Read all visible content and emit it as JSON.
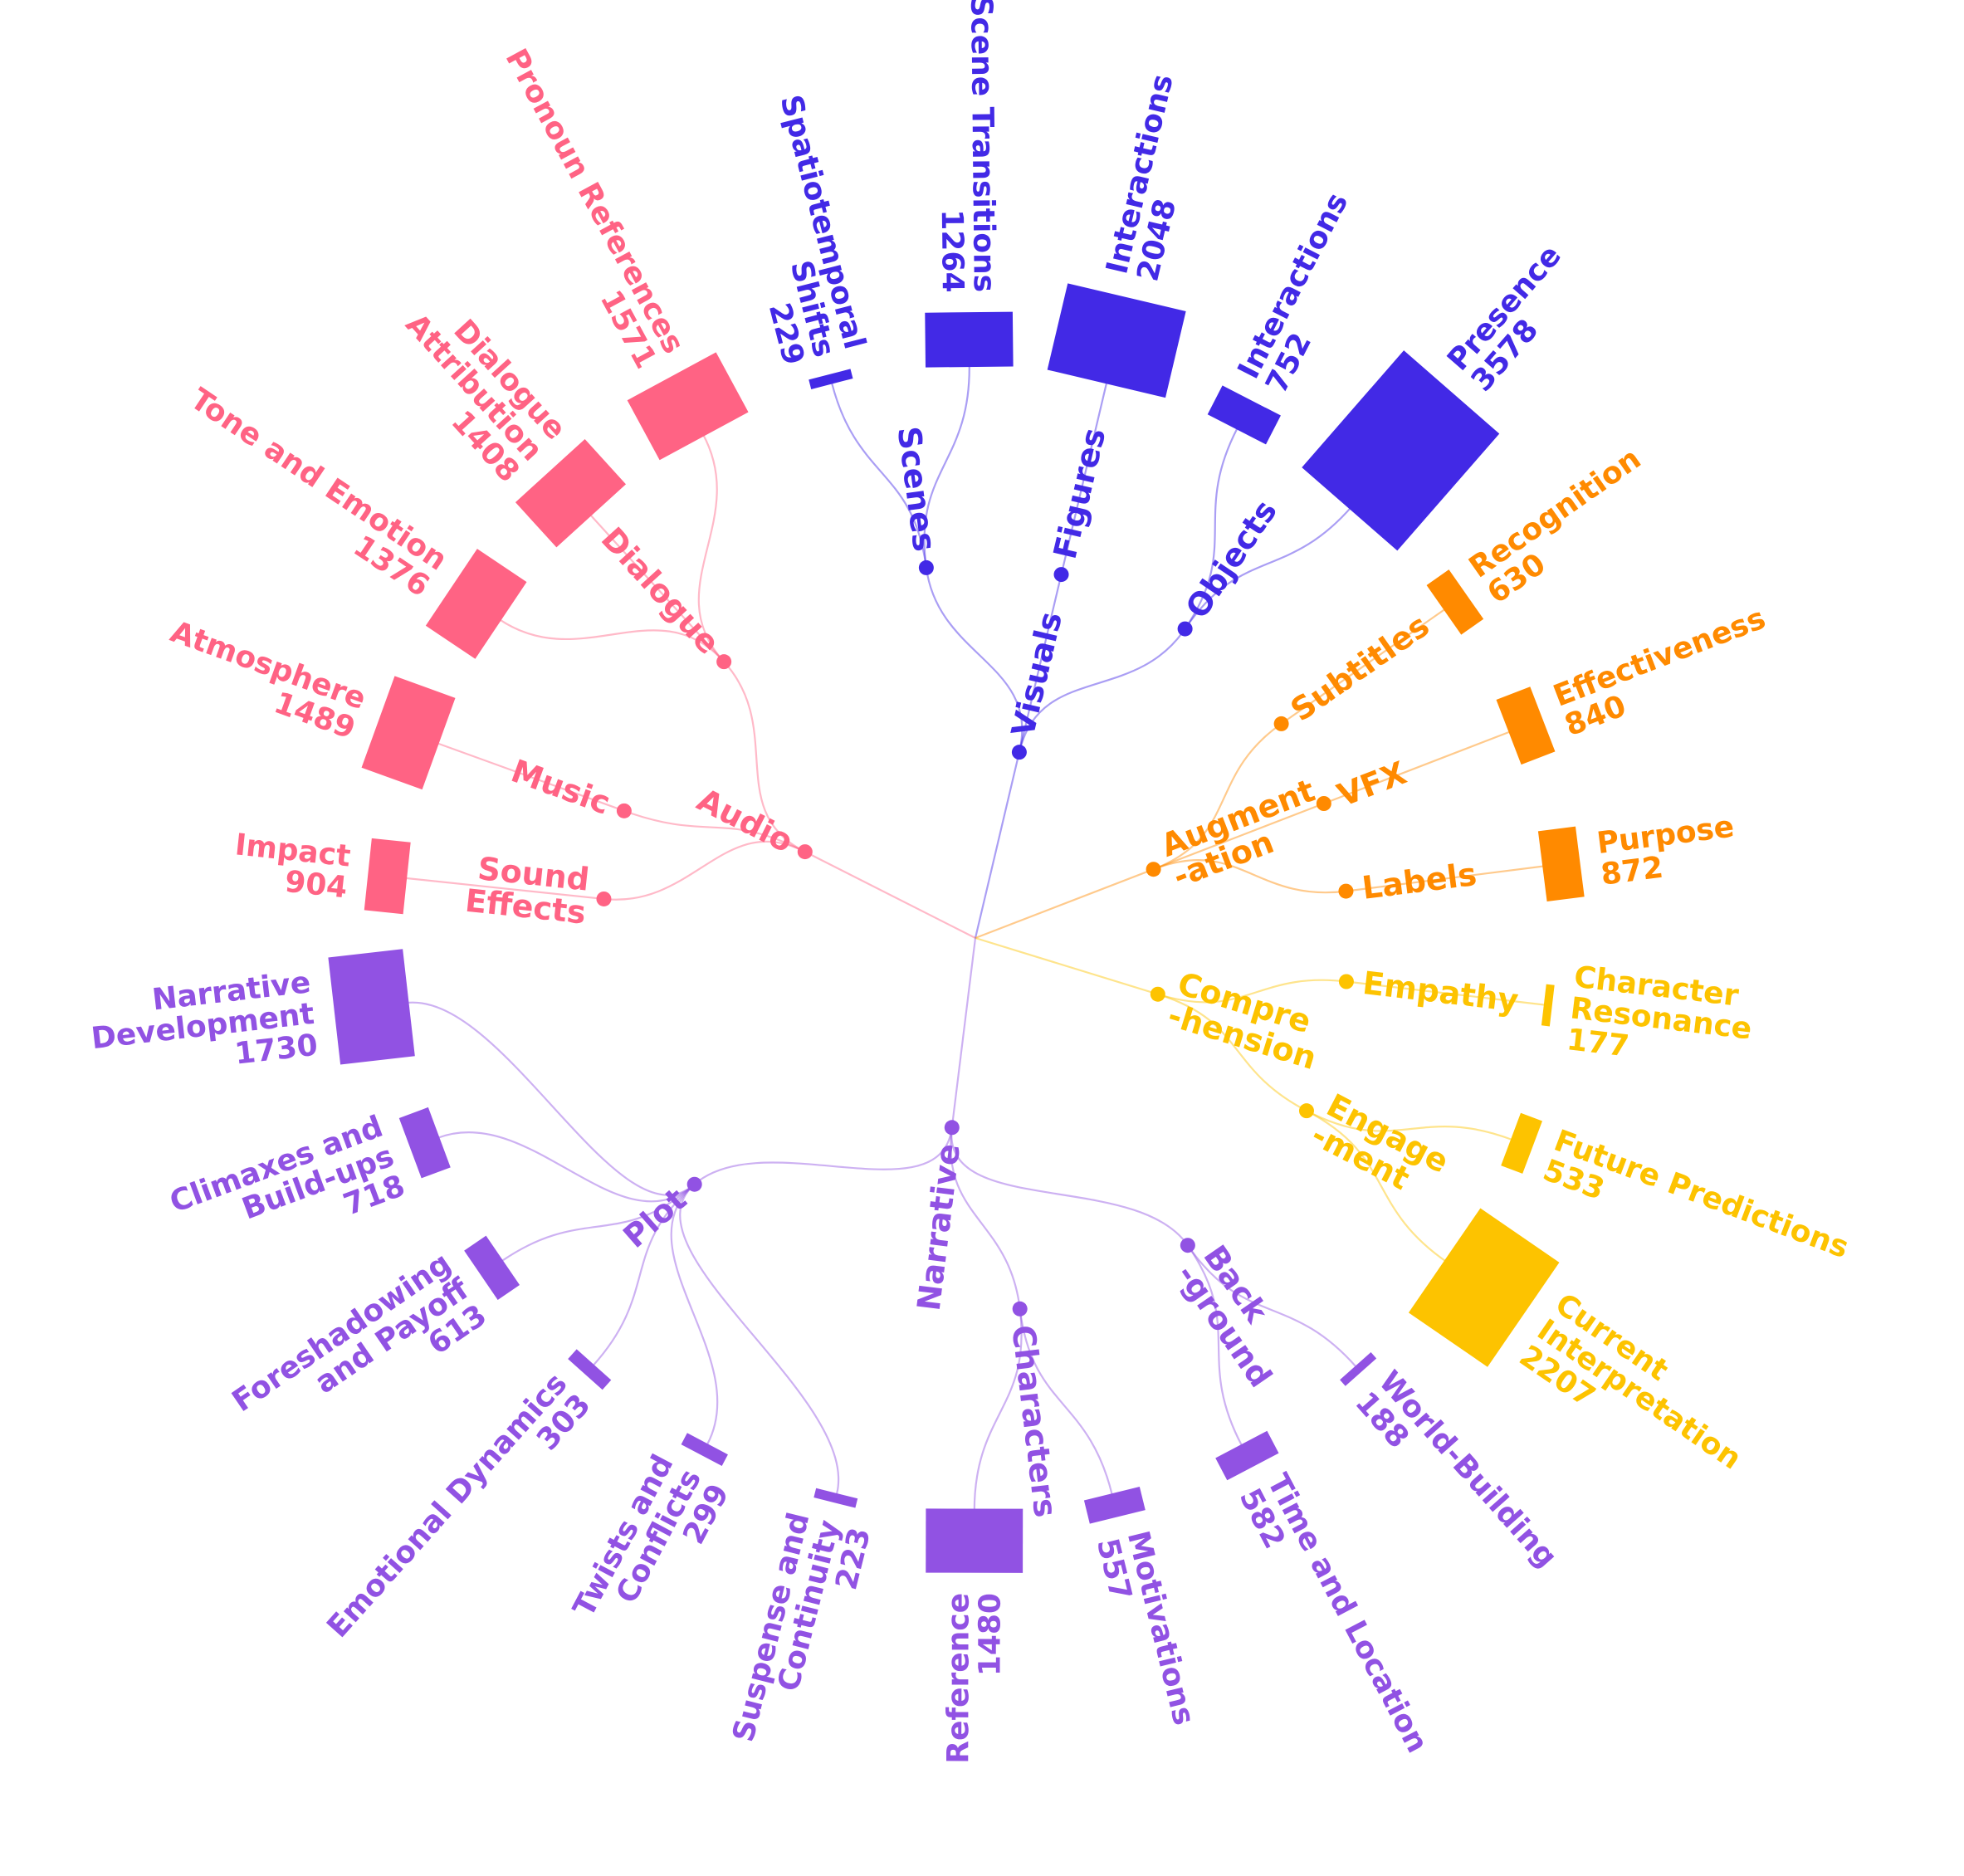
{
  "chart_data": {
    "type": "radial-tree",
    "groups": [
      {
        "name": "Audio",
        "color": "#FF6384",
        "subgroups": [
          {
            "name": "Sound Effects",
            "lines": [
              "Sound",
              "Effects"
            ],
            "leaves": [
              {
                "name": "Impact",
                "value": 904
              }
            ]
          },
          {
            "name": "Music",
            "lines": [
              "Music"
            ],
            "leaves": [
              {
                "name": "Atmosphere",
                "value": 1489
              }
            ]
          },
          {
            "name": "Dialogue",
            "lines": [
              "Dialogue"
            ],
            "leaves": [
              {
                "name": "Tone and Emotion",
                "value": 1376
              },
              {
                "name": "Dialogue Attribution",
                "value": 1408
              },
              {
                "name": "Pronoun References",
                "value": 1571
              }
            ]
          }
        ]
      },
      {
        "name": "Visuals",
        "color": "#4229E6",
        "subgroups": [
          {
            "name": "Scenes",
            "lines": [
              "Scenes"
            ],
            "leaves": [
              {
                "name": "Spatiotemporal Shifts",
                "value": 229
              },
              {
                "name": "Scene Transitions",
                "value": 1264
              }
            ]
          },
          {
            "name": "Figures",
            "lines": [
              "Figures"
            ],
            "leaves": [
              {
                "name": "Interactions",
                "value": 2048
              }
            ]
          },
          {
            "name": "Objects",
            "lines": [
              "Objects"
            ],
            "leaves": [
              {
                "name": "Interactions",
                "value": 752
              },
              {
                "name": "Presence",
                "value": 3578
              }
            ]
          }
        ]
      },
      {
        "name": "Augmentation",
        "lines": [
          "Augment",
          "-ation"
        ],
        "color": "#FF8A00",
        "subgroups": [
          {
            "name": "Subtitles",
            "lines": [
              "Subtitles"
            ],
            "leaves": [
              {
                "name": "Recognition",
                "value": 630
              }
            ]
          },
          {
            "name": "VFX",
            "lines": [
              "VFX"
            ],
            "leaves": [
              {
                "name": "Effectiveness",
                "value": 840
              }
            ]
          },
          {
            "name": "Labels",
            "lines": [
              "Labels"
            ],
            "leaves": [
              {
                "name": "Purpose",
                "value": 872
              }
            ]
          }
        ]
      },
      {
        "name": "Comprehension",
        "lines": [
          "Compre",
          "-hension"
        ],
        "color": "#FDC300",
        "subgroups": [
          {
            "name": "Empathy",
            "lines": [
              "Empathy"
            ],
            "leaves": [
              {
                "name": "Character Resonance",
                "value": 177
              }
            ]
          },
          {
            "name": "Engagement",
            "lines": [
              "Engage",
              "-ment"
            ],
            "leaves": [
              {
                "name": "Future Predictions",
                "value": 533
              },
              {
                "name": "Current Interpretation",
                "value": 2207
              }
            ]
          }
        ]
      },
      {
        "name": "Narrative",
        "color": "#9152E3",
        "subgroups": [
          {
            "name": "Background",
            "lines": [
              "Back",
              "-ground"
            ],
            "leaves": [
              {
                "name": "World-Building",
                "value": 188
              },
              {
                "name": "Time and Location",
                "value": 582
              }
            ]
          },
          {
            "name": "Characters",
            "lines": [
              "Characters"
            ],
            "leaves": [
              {
                "name": "Motivations",
                "value": 557
              },
              {
                "name": "Reference",
                "value": 1480
              }
            ]
          },
          {
            "name": "Plot",
            "lines": [
              "Plot"
            ],
            "leaves": [
              {
                "name": "Suspense and Continuity",
                "value": 223
              },
              {
                "name": "Twists and Conflicts",
                "value": 299
              },
              {
                "name": "Emotional Dynamics",
                "value": 303
              },
              {
                "name": "Foreshadowing and Payoff",
                "value": 613
              },
              {
                "name": "Climaxes and Build-ups",
                "value": 718
              },
              {
                "name": "Narrative Development",
                "value": 1730
              }
            ]
          }
        ]
      }
    ]
  }
}
